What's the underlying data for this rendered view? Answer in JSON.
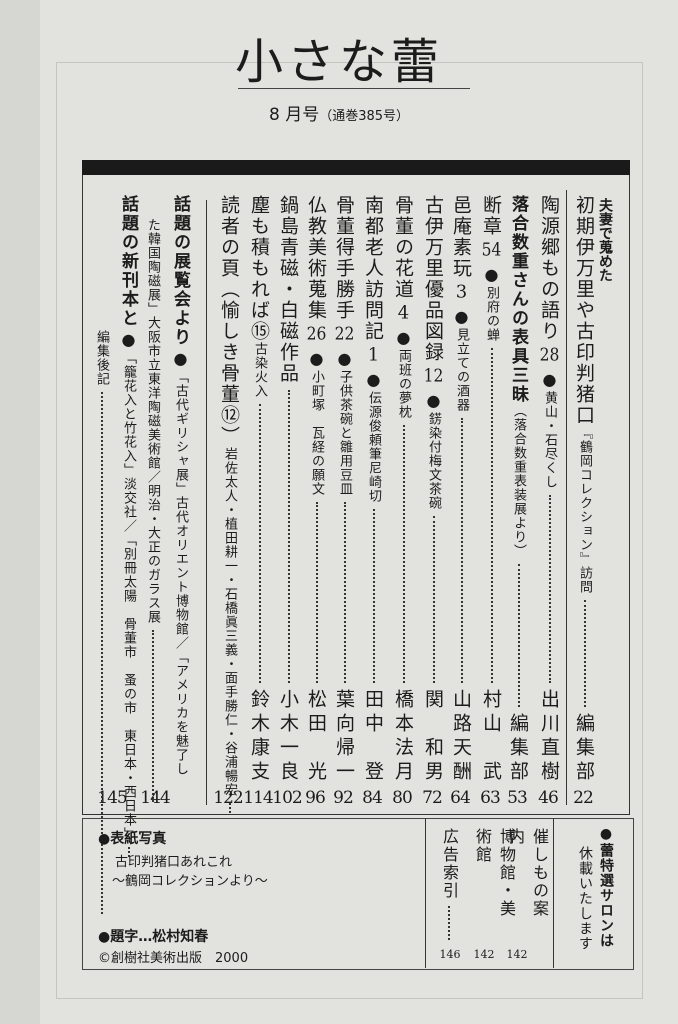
{
  "header": {
    "title": "小さな蕾",
    "issue": "8 月号",
    "volume": "（通巻385号）"
  },
  "entries": [
    {
      "kicker": "夫妻で蒐めた",
      "title": "初期伊万里や古印判猪口",
      "sub": "『鶴岡コレクション』訪問",
      "author": "編集部",
      "page": "22"
    },
    {
      "title": "陶源郷もの語り",
      "num": "28",
      "sub": "黄山・石尽くし",
      "author": "出川直樹",
      "page": "46"
    },
    {
      "title": "落合数重さんの表具三昧",
      "bold": true,
      "sub": "（落合数重表装展より）",
      "author": "編集部",
      "page": "53"
    },
    {
      "title": "断章",
      "num": "54",
      "sub": "別府の蝉",
      "author": "村山　武",
      "page": "63"
    },
    {
      "title": "邑庵素玩",
      "num": "3",
      "sub": "見立ての酒器",
      "author": "山路天酬",
      "page": "64"
    },
    {
      "title": "古伊万里優品図録",
      "num": "12",
      "sub": "錺染付梅文茶碗",
      "author": "関　和男",
      "page": "72"
    },
    {
      "title": "骨董の花道",
      "num": "4",
      "sub": "両班の夢枕",
      "author": "橋本法月",
      "page": "80"
    },
    {
      "title": "南都老人訪問記",
      "num": "1",
      "sub": "伝源俊頼筆尼崎切",
      "author": "田中　登",
      "page": "84"
    },
    {
      "title": "骨董得手勝手",
      "num": "22",
      "sub": "子供茶碗と雛用豆皿",
      "author": "葉向帰一",
      "page": "92"
    },
    {
      "title": "仏教美術蒐集",
      "num": "26",
      "sub": "小町塚　瓦経の願文",
      "author": "松田　光",
      "page": "96"
    },
    {
      "title": "鍋島青磁・白磁作品",
      "author": "小木一良",
      "page": "102"
    },
    {
      "title": "塵も積もれば⑮",
      "sub": "古染火入",
      "author": "鈴木康支",
      "page": "114"
    },
    {
      "title": "読者の頁（愉しき骨董⑫）",
      "sub": "岩佐太人・植田耕一・石橋眞三義・面手勝仁・谷浦暢宏",
      "page": "122"
    },
    {
      "title": "話題の展覧会より",
      "bold": true,
      "bullet": true,
      "sub": "「古代ギリシャ展」古代オリエント博物館／「アメリカを魅了し",
      "noLead": true
    },
    {
      "sub": "た韓国陶磁展」大阪市立東洋陶磁美術館／明治・大正のガラス展",
      "page": "144"
    },
    {
      "title": "話題の新刊本と",
      "bold": true,
      "bullet": true,
      "sub": "「籠花入と竹花入」淡交社／「別冊太陽　骨董市　蚤の市　東日本・西日本」",
      "page": "145"
    },
    {
      "sub": "編集後記"
    }
  ],
  "bottom": {
    "cover_label": "●表紙写真",
    "cover_line1": "古印判猪口あれこれ",
    "cover_line2": "〜鶴岡コレクションより〜",
    "calligraphy": "●題字…松村知春",
    "copyright": "©創樹社美術出版　2000",
    "index": [
      {
        "label": "催しもの案内",
        "page": "142"
      },
      {
        "label": "博物館・美術館",
        "page": "142"
      },
      {
        "label": "広告索引",
        "page": "146"
      }
    ],
    "notice_line1": "●蕾特選サロンは",
    "notice_line2": "休載いたします"
  }
}
